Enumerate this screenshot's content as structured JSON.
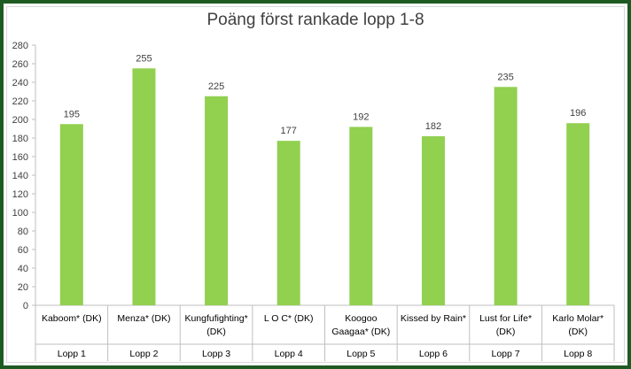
{
  "chart_data": {
    "type": "bar",
    "title": "Poäng först rankade lopp 1-8",
    "xlabel": "",
    "ylabel": "",
    "ylim": [
      0,
      280
    ],
    "yticks": [
      0,
      20,
      40,
      60,
      80,
      100,
      120,
      140,
      160,
      180,
      200,
      220,
      240,
      260,
      280
    ],
    "grid": false,
    "legend": "none",
    "bar_color": "#92d050",
    "categories": [
      {
        "name": [
          "Kaboom* (DK)"
        ],
        "group": "Lopp 1"
      },
      {
        "name": [
          "Menza* (DK)"
        ],
        "group": "Lopp 2"
      },
      {
        "name": [
          "Kungfufighting*",
          "(DK)"
        ],
        "group": "Lopp 3"
      },
      {
        "name": [
          "L O C* (DK)"
        ],
        "group": "Lopp 4"
      },
      {
        "name": [
          "Koogoo",
          "Gaagaa* (DK)"
        ],
        "group": "Lopp 5"
      },
      {
        "name": [
          "Kissed by Rain*"
        ],
        "group": "Lopp 6"
      },
      {
        "name": [
          "Lust for Life*",
          "(DK)"
        ],
        "group": "Lopp 7"
      },
      {
        "name": [
          "Karlo Molar*",
          "(DK)"
        ],
        "group": "Lopp 8"
      }
    ],
    "values": [
      195,
      255,
      225,
      177,
      192,
      182,
      235,
      196
    ]
  }
}
